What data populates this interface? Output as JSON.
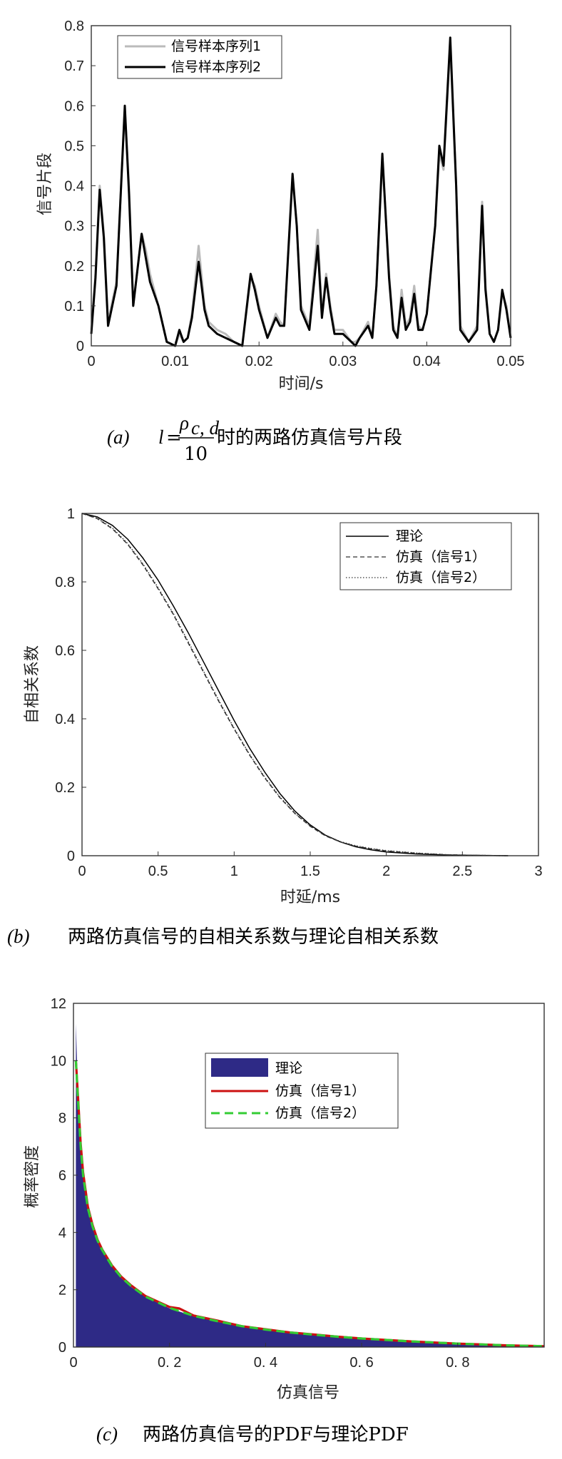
{
  "chart_data": [
    {
      "type": "line",
      "xlabel": "时间/s",
      "ylabel": "信号片段",
      "xlim": [
        0,
        0.05
      ],
      "ylim": [
        0,
        0.8
      ],
      "xticks": [
        0,
        0.01,
        0.02,
        0.03,
        0.04,
        0.05
      ],
      "xtick_labels": [
        "0",
        "0.01",
        "0.02",
        "0.03",
        "0.04",
        "0.05"
      ],
      "yticks": [
        0,
        0.1,
        0.2,
        0.3,
        0.4,
        0.5,
        0.6,
        0.7,
        0.8
      ],
      "ytick_labels": [
        "0",
        "0.1",
        "0.2",
        "0.3",
        "0.4",
        "0.5",
        "0.6",
        "0.7",
        "0.8"
      ],
      "grid": false,
      "legend": "top-left",
      "series": [
        {
          "name": "信号样本序列1",
          "color": "#bbbbbb",
          "x": [
            0,
            0.0005,
            0.001,
            0.0015,
            0.002,
            0.003,
            0.004,
            0.0045,
            0.005,
            0.006,
            0.0065,
            0.007,
            0.008,
            0.009,
            0.01,
            0.0105,
            0.011,
            0.0115,
            0.012,
            0.0128,
            0.0135,
            0.014,
            0.015,
            0.016,
            0.017,
            0.018,
            0.019,
            0.0195,
            0.02,
            0.021,
            0.022,
            0.0225,
            0.023,
            0.024,
            0.0245,
            0.025,
            0.026,
            0.027,
            0.0275,
            0.028,
            0.0285,
            0.029,
            0.03,
            0.031,
            0.0315,
            0.032,
            0.033,
            0.0335,
            0.034,
            0.0347,
            0.0355,
            0.036,
            0.0365,
            0.037,
            0.0375,
            0.038,
            0.0385,
            0.039,
            0.0395,
            0.04,
            0.041,
            0.0415,
            0.042,
            0.0428,
            0.0435,
            0.044,
            0.045,
            0.046,
            0.0466,
            0.047,
            0.0475,
            0.048,
            0.0485,
            0.049,
            0.0495,
            0.05
          ],
          "y": [
            0.04,
            0.18,
            0.4,
            0.28,
            0.06,
            0.16,
            0.59,
            0.4,
            0.1,
            0.28,
            0.24,
            0.18,
            0.1,
            0.01,
            0.0,
            0.03,
            0.01,
            0.02,
            0.08,
            0.25,
            0.1,
            0.06,
            0.04,
            0.03,
            0.01,
            0.0,
            0.17,
            0.15,
            0.1,
            0.02,
            0.08,
            0.06,
            0.05,
            0.42,
            0.3,
            0.1,
            0.05,
            0.29,
            0.08,
            0.18,
            0.1,
            0.04,
            0.04,
            0.01,
            0.01,
            0.02,
            0.06,
            0.02,
            0.15,
            0.47,
            0.18,
            0.05,
            0.02,
            0.14,
            0.05,
            0.07,
            0.15,
            0.05,
            0.04,
            0.08,
            0.3,
            0.48,
            0.44,
            0.75,
            0.4,
            0.05,
            0.01,
            0.05,
            0.36,
            0.15,
            0.03,
            0.01,
            0.04,
            0.13,
            0.1,
            0.02
          ]
        },
        {
          "name": "信号样本序列2",
          "color": "#000000",
          "x": [
            0,
            0.0005,
            0.001,
            0.0015,
            0.002,
            0.003,
            0.004,
            0.0045,
            0.005,
            0.006,
            0.0065,
            0.007,
            0.008,
            0.009,
            0.01,
            0.0105,
            0.011,
            0.0115,
            0.012,
            0.0128,
            0.0135,
            0.014,
            0.015,
            0.016,
            0.017,
            0.018,
            0.019,
            0.0195,
            0.02,
            0.021,
            0.022,
            0.0225,
            0.023,
            0.024,
            0.0245,
            0.025,
            0.026,
            0.027,
            0.0275,
            0.028,
            0.0285,
            0.029,
            0.03,
            0.031,
            0.0315,
            0.032,
            0.033,
            0.0335,
            0.034,
            0.0347,
            0.0355,
            0.036,
            0.0365,
            0.037,
            0.0375,
            0.038,
            0.0385,
            0.039,
            0.0395,
            0.04,
            0.041,
            0.0415,
            0.042,
            0.0428,
            0.0435,
            0.044,
            0.045,
            0.046,
            0.0466,
            0.047,
            0.0475,
            0.048,
            0.0485,
            0.049,
            0.0495,
            0.05
          ],
          "y": [
            0.03,
            0.17,
            0.39,
            0.27,
            0.05,
            0.15,
            0.6,
            0.38,
            0.1,
            0.28,
            0.22,
            0.16,
            0.1,
            0.01,
            0.0,
            0.04,
            0.01,
            0.02,
            0.07,
            0.21,
            0.09,
            0.05,
            0.03,
            0.02,
            0.01,
            0.0,
            0.18,
            0.14,
            0.09,
            0.02,
            0.07,
            0.05,
            0.05,
            0.43,
            0.3,
            0.09,
            0.04,
            0.25,
            0.07,
            0.17,
            0.09,
            0.03,
            0.03,
            0.01,
            0.0,
            0.02,
            0.05,
            0.02,
            0.15,
            0.48,
            0.17,
            0.04,
            0.02,
            0.12,
            0.04,
            0.06,
            0.13,
            0.04,
            0.04,
            0.08,
            0.3,
            0.5,
            0.45,
            0.77,
            0.4,
            0.04,
            0.01,
            0.04,
            0.35,
            0.14,
            0.03,
            0.01,
            0.04,
            0.14,
            0.09,
            0.02
          ]
        }
      ]
    },
    {
      "type": "line",
      "xlabel": "时延/ms",
      "ylabel": "自相关系数",
      "xlim": [
        0,
        3
      ],
      "ylim": [
        0,
        1
      ],
      "xticks": [
        0,
        0.5,
        1,
        1.5,
        2,
        2.5,
        3
      ],
      "xtick_labels": [
        "0",
        "0.5",
        "1",
        "1.5",
        "2",
        "2.5",
        "3"
      ],
      "yticks": [
        0,
        0.2,
        0.4,
        0.6,
        0.8,
        1
      ],
      "ytick_labels": [
        "0",
        "0.2",
        "0.4",
        "0.6",
        "0.8",
        "1"
      ],
      "grid": false,
      "legend": "top-right",
      "series": [
        {
          "name": "理论",
          "color": "#000000",
          "dash": "solid",
          "x": [
            0,
            0.1,
            0.2,
            0.3,
            0.4,
            0.5,
            0.6,
            0.7,
            0.8,
            0.9,
            1.0,
            1.1,
            1.2,
            1.3,
            1.4,
            1.5,
            1.6,
            1.7,
            1.8,
            1.9,
            2.0,
            2.2,
            2.4,
            2.6,
            2.8
          ],
          "y": [
            1.0,
            0.99,
            0.965,
            0.925,
            0.87,
            0.805,
            0.73,
            0.65,
            0.565,
            0.48,
            0.395,
            0.315,
            0.245,
            0.182,
            0.13,
            0.09,
            0.06,
            0.04,
            0.026,
            0.017,
            0.011,
            0.005,
            0.002,
            0.001,
            0.0
          ]
        },
        {
          "name": "仿真（信号1）",
          "color": "#333333",
          "dash": "dashed",
          "x": [
            0,
            0.1,
            0.2,
            0.3,
            0.4,
            0.5,
            0.6,
            0.7,
            0.8,
            0.9,
            1.0,
            1.1,
            1.2,
            1.3,
            1.4,
            1.5,
            1.6,
            1.7,
            1.8,
            1.9,
            2.0,
            2.2,
            2.4,
            2.6,
            2.8
          ],
          "y": [
            1.0,
            0.985,
            0.955,
            0.91,
            0.85,
            0.78,
            0.705,
            0.62,
            0.535,
            0.45,
            0.37,
            0.295,
            0.228,
            0.17,
            0.123,
            0.086,
            0.058,
            0.04,
            0.028,
            0.02,
            0.014,
            0.007,
            0.003,
            0.001,
            0.0
          ]
        },
        {
          "name": "仿真（信号2）",
          "color": "#333333",
          "dash": "dotted",
          "x": [
            0,
            0.1,
            0.2,
            0.3,
            0.4,
            0.5,
            0.6,
            0.7,
            0.8,
            0.9,
            1.0,
            1.1,
            1.2,
            1.3,
            1.4,
            1.5,
            1.6,
            1.7,
            1.8,
            1.9,
            2.0,
            2.2,
            2.4,
            2.6,
            2.8
          ],
          "y": [
            1.0,
            0.986,
            0.957,
            0.912,
            0.853,
            0.783,
            0.708,
            0.624,
            0.538,
            0.453,
            0.372,
            0.297,
            0.23,
            0.172,
            0.124,
            0.087,
            0.059,
            0.041,
            0.029,
            0.021,
            0.015,
            0.008,
            0.003,
            0.001,
            0.0
          ]
        }
      ]
    },
    {
      "type": "area",
      "xlabel": "仿真信号",
      "ylabel": "概率密度",
      "xlim": [
        0,
        0.98
      ],
      "ylim": [
        0,
        12
      ],
      "xticks": [
        0,
        0.2,
        0.4,
        0.6,
        0.8
      ],
      "xtick_labels": [
        "0",
        "0. 2",
        "0. 4",
        "0. 6",
        "0. 8"
      ],
      "yticks": [
        0,
        2,
        4,
        6,
        8,
        10,
        12
      ],
      "ytick_labels": [
        "0",
        "2",
        "4",
        "6",
        "8",
        "10",
        "12"
      ],
      "grid": false,
      "legend": "upper-center",
      "series": [
        {
          "name": "理论",
          "color": "#2e2a86",
          "kind": "area",
          "x": [
            0.005,
            0.01,
            0.015,
            0.02,
            0.03,
            0.04,
            0.05,
            0.06,
            0.08,
            0.1,
            0.12,
            0.15,
            0.2,
            0.25,
            0.3,
            0.35,
            0.4,
            0.45,
            0.5,
            0.55,
            0.6,
            0.65,
            0.7,
            0.75,
            0.8,
            0.85,
            0.9,
            0.95,
            0.98
          ],
          "y": [
            11.3,
            8.5,
            7.0,
            6.0,
            4.9,
            4.2,
            3.7,
            3.35,
            2.8,
            2.4,
            2.1,
            1.75,
            1.35,
            1.08,
            0.88,
            0.72,
            0.6,
            0.5,
            0.42,
            0.35,
            0.29,
            0.24,
            0.19,
            0.15,
            0.11,
            0.08,
            0.05,
            0.03,
            0.02
          ]
        },
        {
          "name": "仿真（信号1）",
          "color": "#cc1111",
          "kind": "line",
          "x": [
            0.005,
            0.01,
            0.015,
            0.02,
            0.03,
            0.04,
            0.05,
            0.06,
            0.08,
            0.1,
            0.12,
            0.15,
            0.2,
            0.22,
            0.25,
            0.3,
            0.35,
            0.4,
            0.45,
            0.5,
            0.55,
            0.6,
            0.65,
            0.7,
            0.75,
            0.8,
            0.85,
            0.9,
            0.95,
            0.98
          ],
          "y": [
            10.0,
            8.6,
            7.1,
            6.1,
            4.9,
            4.25,
            3.75,
            3.4,
            2.85,
            2.45,
            2.15,
            1.78,
            1.4,
            1.35,
            1.1,
            0.92,
            0.73,
            0.62,
            0.51,
            0.44,
            0.36,
            0.3,
            0.25,
            0.2,
            0.16,
            0.12,
            0.09,
            0.06,
            0.04,
            0.03
          ]
        },
        {
          "name": "仿真（信号2）",
          "color": "#33cc33",
          "kind": "line-dashed",
          "x": [
            0.005,
            0.01,
            0.015,
            0.02,
            0.03,
            0.04,
            0.05,
            0.06,
            0.08,
            0.1,
            0.12,
            0.15,
            0.2,
            0.25,
            0.3,
            0.35,
            0.4,
            0.45,
            0.5,
            0.55,
            0.6,
            0.65,
            0.7,
            0.75,
            0.8,
            0.85,
            0.9,
            0.95,
            0.98
          ],
          "y": [
            10.0,
            8.5,
            7.0,
            6.0,
            4.85,
            4.2,
            3.72,
            3.38,
            2.83,
            2.43,
            2.13,
            1.76,
            1.37,
            1.09,
            0.9,
            0.73,
            0.61,
            0.51,
            0.43,
            0.36,
            0.3,
            0.25,
            0.2,
            0.16,
            0.12,
            0.09,
            0.06,
            0.04,
            0.03
          ]
        }
      ]
    }
  ],
  "captions": [
    {
      "tag": "(a)",
      "text_parts": [
        "l",
        "=",
        "ρ",
        "c, d",
        "10",
        "时的两路仿真信号片段"
      ]
    },
    {
      "tag": "(b)",
      "text_parts": [
        "两路仿真信号的自相关系数与理论自相关系数"
      ]
    },
    {
      "tag": "(c)",
      "text_parts": [
        "两路仿真信号的PDF与理论PDF"
      ]
    }
  ]
}
